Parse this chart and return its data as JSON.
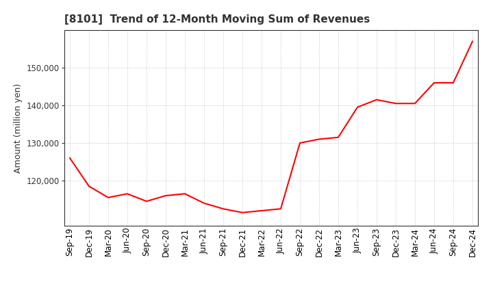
{
  "title": "[8101]  Trend of 12-Month Moving Sum of Revenues",
  "ylabel": "Amount (million yen)",
  "line_color": "#ff0000",
  "background_color": "#ffffff",
  "grid_color": "#aaaaaa",
  "title_color": "#333333",
  "x_labels": [
    "Sep-19",
    "Dec-19",
    "Mar-20",
    "Jun-20",
    "Sep-20",
    "Dec-20",
    "Mar-21",
    "Jun-21",
    "Sep-21",
    "Dec-21",
    "Mar-22",
    "Jun-22",
    "Sep-22",
    "Dec-22",
    "Mar-23",
    "Jun-23",
    "Sep-23",
    "Dec-23",
    "Mar-24",
    "Jun-24",
    "Sep-24",
    "Dec-24"
  ],
  "values": [
    126000,
    118500,
    115500,
    116500,
    114500,
    116000,
    116500,
    114000,
    112500,
    111500,
    112000,
    112500,
    130000,
    131000,
    131500,
    139500,
    141500,
    140500,
    140500,
    146000,
    146000,
    157000
  ],
  "ylim_min": 108000,
  "ylim_max": 160000,
  "yticks": [
    120000,
    130000,
    140000,
    150000
  ],
  "title_fontsize": 11,
  "axis_fontsize": 9,
  "tick_fontsize": 8.5
}
